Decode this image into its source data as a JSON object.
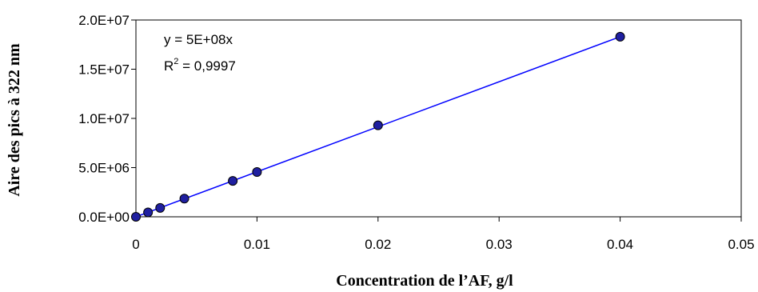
{
  "chart_data": {
    "type": "scatter",
    "title": "",
    "xlabel": "Concentration de l’AF, g/l",
    "ylabel": "Aire des pics à 322 nm",
    "xlim": [
      0,
      0.05
    ],
    "ylim": [
      0,
      20000000
    ],
    "x_ticks": [
      "0",
      "0.01",
      "0.02",
      "0.03",
      "0.04",
      "0.05"
    ],
    "x_tick_values": [
      0,
      0.01,
      0.02,
      0.03,
      0.04,
      0.05
    ],
    "y_ticks": [
      "0.0E+00",
      "5.0E+06",
      "1.0E+07",
      "1.5E+07",
      "2.0E+07"
    ],
    "y_tick_values": [
      0,
      5000000,
      10000000,
      15000000,
      20000000
    ],
    "grid": false,
    "legend": "none",
    "series": [
      {
        "marker_color": "#1f1fa0",
        "line_color": "#0000ff",
        "x": [
          0,
          0.001,
          0.002,
          0.004,
          0.008,
          0.01,
          0.02,
          0.04
        ],
        "y": [
          0,
          450000,
          900000,
          1850000,
          3650000,
          4550000,
          9300000,
          18300000
        ]
      }
    ],
    "trendline": {
      "x": [
        0,
        0.04
      ],
      "y": [
        0,
        18300000
      ]
    },
    "annotations": {
      "equation": "y = 5E+08x",
      "r2_prefix": "R",
      "r2_sup": "2",
      "r2_value": " = 0,9997"
    }
  }
}
